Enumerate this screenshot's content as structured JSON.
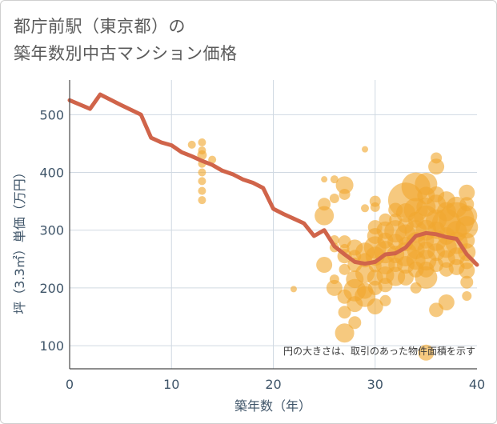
{
  "title_lines": [
    "都庁前駅（東京都）の",
    "築年数別中古マンション価格"
  ],
  "chart_data": {
    "type": "scatter",
    "title": "都庁前駅（東京都）の築年数別中古マンション価格",
    "xlabel": "築年数（年）",
    "ylabel": "坪（3.3㎡）単価（万円）",
    "xlim": [
      0,
      40
    ],
    "ylim": [
      60,
      560
    ],
    "xticks": [
      0,
      10,
      20,
      30,
      40
    ],
    "yticks": [
      100,
      200,
      300,
      400,
      500
    ],
    "grid": true,
    "note": "円の大きさは、取引のあった物件面積を示す",
    "colors": {
      "bubble": "#F0A830",
      "line": "#D0644A",
      "grid": "#d0d9e2",
      "axis_text": "#3f5569"
    },
    "series": [
      {
        "type": "line",
        "x": [
          0,
          2,
          3,
          5,
          7,
          8,
          9,
          10,
          11,
          12,
          13,
          14,
          15,
          16,
          17,
          18,
          19,
          20,
          21,
          22,
          23,
          24,
          25,
          26,
          27,
          28,
          29,
          30,
          31,
          32,
          33,
          34,
          35,
          36,
          37,
          38,
          39,
          40
        ],
        "y": [
          525,
          510,
          535,
          517,
          500,
          460,
          452,
          447,
          435,
          428,
          420,
          413,
          403,
          397,
          388,
          382,
          373,
          337,
          328,
          320,
          312,
          290,
          300,
          272,
          258,
          245,
          242,
          245,
          258,
          260,
          270,
          290,
          295,
          293,
          288,
          285,
          258,
          240
        ]
      },
      {
        "type": "bubble",
        "points": [
          [
            12,
            448,
            5
          ],
          [
            13,
            452,
            5
          ],
          [
            13,
            438,
            5
          ],
          [
            13,
            430,
            6
          ],
          [
            13,
            415,
            5
          ],
          [
            13,
            400,
            5
          ],
          [
            13,
            385,
            5
          ],
          [
            13,
            368,
            5
          ],
          [
            13,
            352,
            5
          ],
          [
            14,
            422,
            5
          ],
          [
            22,
            198,
            4
          ],
          [
            25,
            388,
            4
          ],
          [
            25,
            345,
            8
          ],
          [
            25,
            325,
            12
          ],
          [
            25,
            240,
            10
          ],
          [
            26,
            388,
            5
          ],
          [
            26,
            355,
            6
          ],
          [
            26,
            283,
            6
          ],
          [
            26,
            270,
            6
          ],
          [
            26,
            215,
            6
          ],
          [
            26,
            200,
            10
          ],
          [
            27,
            378,
            11
          ],
          [
            27,
            362,
            7
          ],
          [
            27,
            280,
            8
          ],
          [
            27,
            268,
            6
          ],
          [
            27,
            255,
            9
          ],
          [
            27,
            232,
            7
          ],
          [
            27,
            185,
            9
          ],
          [
            27,
            158,
            8
          ],
          [
            27,
            122,
            12
          ],
          [
            28,
            270,
            10
          ],
          [
            28,
            255,
            8
          ],
          [
            28,
            240,
            9
          ],
          [
            28,
            215,
            11
          ],
          [
            28,
            196,
            14
          ],
          [
            28,
            172,
            10
          ],
          [
            28,
            140,
            8
          ],
          [
            29,
            440,
            4
          ],
          [
            29,
            338,
            5
          ],
          [
            29,
            262,
            12
          ],
          [
            29,
            248,
            9
          ],
          [
            29,
            225,
            12
          ],
          [
            29,
            195,
            10
          ],
          [
            29,
            185,
            13
          ],
          [
            30,
            350,
            7
          ],
          [
            30,
            340,
            6
          ],
          [
            30,
            305,
            9
          ],
          [
            30,
            290,
            10
          ],
          [
            30,
            270,
            14
          ],
          [
            30,
            255,
            12
          ],
          [
            30,
            238,
            8
          ],
          [
            30,
            218,
            10
          ],
          [
            30,
            200,
            9
          ],
          [
            30,
            168,
            10
          ],
          [
            31,
            318,
            8
          ],
          [
            31,
            300,
            11
          ],
          [
            31,
            282,
            10
          ],
          [
            31,
            262,
            14
          ],
          [
            31,
            240,
            12
          ],
          [
            31,
            222,
            11
          ],
          [
            31,
            205,
            9
          ],
          [
            31,
            178,
            7
          ],
          [
            32,
            335,
            9
          ],
          [
            32,
            318,
            8
          ],
          [
            32,
            298,
            14
          ],
          [
            32,
            280,
            10
          ],
          [
            32,
            258,
            11
          ],
          [
            32,
            240,
            9
          ],
          [
            32,
            220,
            12
          ],
          [
            33,
            352,
            22
          ],
          [
            33,
            330,
            12
          ],
          [
            33,
            308,
            10
          ],
          [
            33,
            292,
            13
          ],
          [
            33,
            276,
            9
          ],
          [
            33,
            258,
            15
          ],
          [
            33,
            240,
            11
          ],
          [
            33,
            218,
            10
          ],
          [
            34,
            375,
            18
          ],
          [
            34,
            335,
            15
          ],
          [
            34,
            318,
            10
          ],
          [
            34,
            298,
            14
          ],
          [
            34,
            280,
            12
          ],
          [
            34,
            265,
            11
          ],
          [
            34,
            248,
            12
          ],
          [
            34,
            232,
            10
          ],
          [
            34,
            200,
            7
          ],
          [
            35,
            380,
            14
          ],
          [
            35,
            360,
            11
          ],
          [
            35,
            340,
            12
          ],
          [
            35,
            322,
            15
          ],
          [
            35,
            300,
            13
          ],
          [
            35,
            282,
            10
          ],
          [
            35,
            265,
            11
          ],
          [
            35,
            248,
            13
          ],
          [
            35,
            232,
            10
          ],
          [
            35,
            218,
            14
          ],
          [
            35,
            88,
            10
          ],
          [
            36,
            425,
            7
          ],
          [
            36,
            410,
            10
          ],
          [
            36,
            362,
            10
          ],
          [
            36,
            345,
            12
          ],
          [
            36,
            318,
            13
          ],
          [
            36,
            300,
            11
          ],
          [
            36,
            282,
            13
          ],
          [
            36,
            262,
            11
          ],
          [
            36,
            240,
            9
          ],
          [
            36,
            162,
            9
          ],
          [
            37,
            352,
            11
          ],
          [
            37,
            332,
            12
          ],
          [
            37,
            312,
            18
          ],
          [
            37,
            290,
            11
          ],
          [
            37,
            270,
            13
          ],
          [
            37,
            250,
            11
          ],
          [
            37,
            232,
            9
          ],
          [
            37,
            175,
            10
          ],
          [
            38,
            340,
            13
          ],
          [
            38,
            318,
            22
          ],
          [
            38,
            298,
            13
          ],
          [
            38,
            278,
            14
          ],
          [
            38,
            255,
            11
          ],
          [
            38,
            236,
            10
          ],
          [
            39,
            365,
            10
          ],
          [
            39,
            345,
            9
          ],
          [
            39,
            325,
            13
          ],
          [
            39,
            305,
            14
          ],
          [
            39,
            282,
            10
          ],
          [
            39,
            262,
            11
          ],
          [
            39,
            245,
            9
          ],
          [
            39,
            230,
            10
          ],
          [
            39,
            210,
            8
          ],
          [
            39,
            186,
            6
          ]
        ]
      }
    ]
  }
}
